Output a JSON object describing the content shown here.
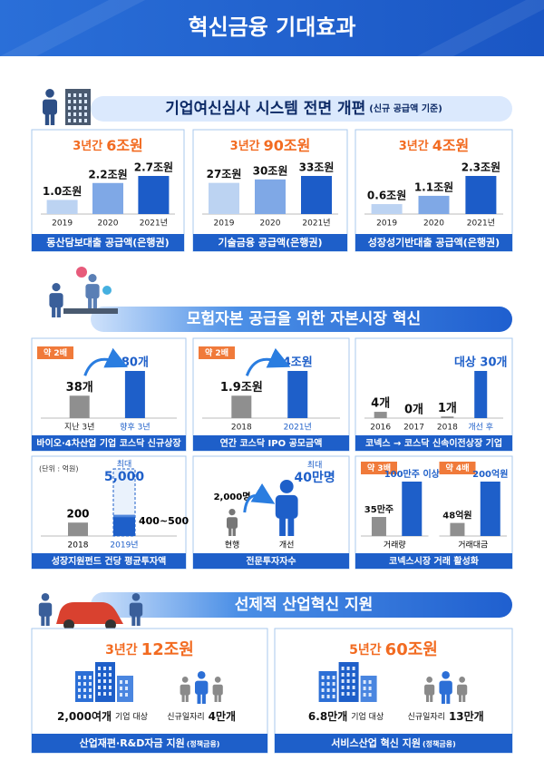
{
  "header": {
    "title": "혁신금융 기대효과"
  },
  "sections": [
    {
      "title": "기업여신심사 시스템 전면 개편",
      "note": "(신규 공급액 기준)",
      "panels": [
        {
          "headline": {
            "period": "3년간",
            "amount": "6조원"
          },
          "bars": [
            {
              "label": "1.0조원",
              "value": 1.0,
              "year": "2019"
            },
            {
              "label": "2.2조원",
              "value": 2.2,
              "year": "2020"
            },
            {
              "label": "2.7조원",
              "value": 2.7,
              "year": "2021년"
            }
          ],
          "footer": "동산담보대출 공급액(은행권)"
        },
        {
          "headline": {
            "period": "3년간",
            "amount": "90조원"
          },
          "bars": [
            {
              "label": "27조원",
              "value": 27,
              "year": "2019"
            },
            {
              "label": "30조원",
              "value": 30,
              "year": "2020"
            },
            {
              "label": "33조원",
              "value": 33,
              "year": "2021년"
            }
          ],
          "footer": "기술금융 공급액(은행권)"
        },
        {
          "headline": {
            "period": "3년간",
            "amount": "4조원"
          },
          "bars": [
            {
              "label": "0.6조원",
              "value": 0.6,
              "year": "2019"
            },
            {
              "label": "1.1조원",
              "value": 1.1,
              "year": "2020"
            },
            {
              "label": "2.3조원",
              "value": 2.3,
              "year": "2021년"
            }
          ],
          "footer": "성장성기반대출 공급액(은행권)"
        }
      ]
    },
    {
      "title": "모험자본 공급을 위한 자본시장 혁신",
      "panels": [
        {
          "badge": "약 2배",
          "bars": [
            {
              "label": "38개",
              "value": 38,
              "sub": "지난 3년"
            },
            {
              "label": "80개",
              "value": 80,
              "sub": "향후 3년"
            }
          ],
          "footer": "바이오·4차산업 기업 코스닥 신규상장"
        },
        {
          "badge": "약 2배",
          "bars": [
            {
              "label": "1.9조원",
              "value": 1.9,
              "sub": "2018"
            },
            {
              "label": "4조원",
              "value": 4,
              "sub": "2021년"
            }
          ],
          "footer": "연간 코스닥 IPO 공모금액"
        },
        {
          "bars": [
            {
              "label": "4개",
              "value": 4,
              "sub": "2016"
            },
            {
              "label": "0개",
              "value": 0,
              "sub": "2017"
            },
            {
              "label": "1개",
              "value": 1,
              "sub": "2018"
            },
            {
              "label": "대상 30개",
              "value": 30,
              "sub": "개선 후"
            }
          ],
          "footer": "코넥스 → 코스닥 신속이전상장 기업"
        },
        {
          "unit": "(단위 : 억원)",
          "bars": [
            {
              "label": "200",
              "value": 200,
              "sub": "2018"
            },
            {
              "label": "400~500",
              "range": [
                400,
                500
              ],
              "sub": "2019년",
              "max_prefix": "최대",
              "max_label": "5,000",
              "max": 5000
            }
          ],
          "footer": "성장지원펀드 건당 평균투자액"
        },
        {
          "before": {
            "label": "2,000명",
            "sub": "현행"
          },
          "after": {
            "prefix": "최대",
            "label": "40만명",
            "sub": "개선"
          },
          "footer": "전문투자자수"
        },
        {
          "groups": [
            {
              "badge": "약 3배",
              "bars": [
                {
                  "label": "35만주",
                  "value": 35
                },
                {
                  "label": "100만주 이상",
                  "value": 100
                }
              ],
              "caption": "거래량"
            },
            {
              "badge": "약 4배",
              "bars": [
                {
                  "label": "48억원",
                  "value": 48
                },
                {
                  "label": "200억원",
                  "value": 200
                }
              ],
              "caption": "거래대금"
            }
          ],
          "footer": "코넥스시장 거래 활성화"
        }
      ]
    },
    {
      "title": "선제적 산업혁신 지원",
      "panels": [
        {
          "headline": {
            "period": "3년간",
            "amount": "12조원"
          },
          "items": [
            [
              {
                "text": "2,000여개",
                "strong": true
              },
              {
                "text": "기업 대상"
              }
            ],
            [
              {
                "text": "신규일자리"
              },
              {
                "text": "4만개",
                "strong": true
              }
            ]
          ],
          "footer": {
            "main": "산업재편·R&D자금 지원",
            "note": "(정책금융)"
          }
        },
        {
          "headline": {
            "period": "5년간",
            "amount": "60조원"
          },
          "items": [
            [
              {
                "text": "6.8만개",
                "strong": true
              },
              {
                "text": "기업 대상"
              }
            ],
            [
              {
                "text": "신규일자리",
                "strong": false
              },
              {
                "text": "13만개",
                "strong": true
              }
            ]
          ],
          "footer": {
            "main": "서비스산업 혁신 지원",
            "note": "(정책금융)"
          }
        }
      ]
    }
  ]
}
